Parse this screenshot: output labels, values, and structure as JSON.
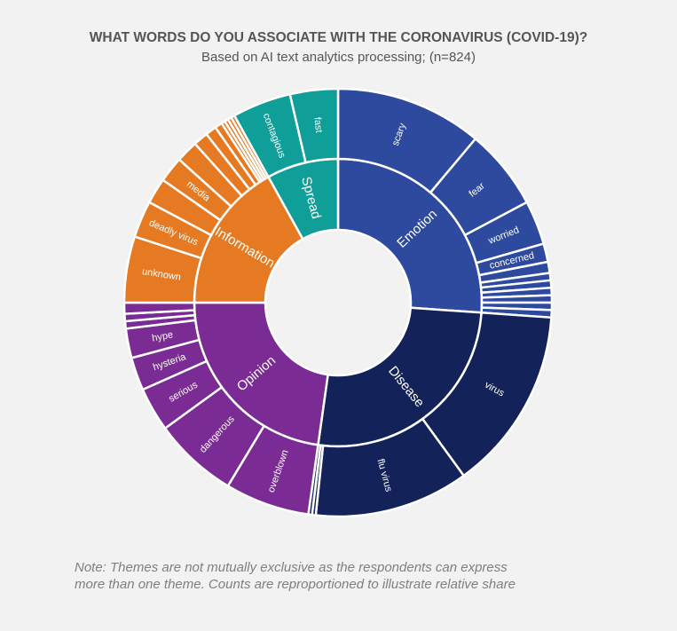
{
  "header": {
    "title": "WHAT WORDS DO YOU ASSOCIATE WITH THE CORONAVIRUS (COVID-19)?",
    "subtitle": "Based on AI text analytics processing; (n=824)"
  },
  "note": {
    "line1": "Note: Themes are not mutually exclusive as the respondents can express",
    "line2": "more than one theme. Counts are reproportioned to illustrate relative share"
  },
  "colors": {
    "Emotion": "#2e4a9e",
    "Disease": "#13235a",
    "Opinion": "#7a2c94",
    "Information": "#e67a22",
    "Spread": "#109e99",
    "separator": "#ffffff",
    "background": "#f2f2f2"
  },
  "chart_data": {
    "type": "sunburst",
    "title": "WHAT WORDS DO YOU ASSOCIATE WITH THE CORONAVIRUS (COVID-19)?",
    "subtitle": "Based on AI text analytics processing; (n=824)",
    "units": "relative share (degrees of circle, estimated)",
    "start_angle_deg": 0,
    "direction": "clockwise",
    "themes": [
      {
        "name": "Emotion",
        "value": 94,
        "children": [
          {
            "name": "scary",
            "value": 40
          },
          {
            "name": "fear",
            "value": 22
          },
          {
            "name": "worried",
            "value": 12
          },
          {
            "name": "concerned",
            "value": 5
          },
          {
            "name": "",
            "value": 3
          },
          {
            "name": "",
            "value": 2
          },
          {
            "name": "",
            "value": 2
          },
          {
            "name": "",
            "value": 2
          },
          {
            "name": "",
            "value": 2
          },
          {
            "name": "",
            "value": 2
          },
          {
            "name": "",
            "value": 2
          }
        ]
      },
      {
        "name": "Disease",
        "value": 94,
        "children": [
          {
            "name": "virus",
            "value": 50
          },
          {
            "name": "flu virus",
            "value": 42
          },
          {
            "name": "",
            "value": 1
          },
          {
            "name": "",
            "value": 1
          }
        ]
      },
      {
        "name": "Opinion",
        "value": 82,
        "children": [
          {
            "name": "overblown",
            "value": 23
          },
          {
            "name": "dangerous",
            "value": 23
          },
          {
            "name": "serious",
            "value": 12
          },
          {
            "name": "hysteria",
            "value": 9
          },
          {
            "name": "hype",
            "value": 8
          },
          {
            "name": "",
            "value": 2
          },
          {
            "name": "",
            "value": 2
          },
          {
            "name": "",
            "value": 3
          }
        ]
      },
      {
        "name": "Information",
        "value": 61,
        "children": [
          {
            "name": "unknown",
            "value": 18
          },
          {
            "name": "deadly virus",
            "value": 10
          },
          {
            "name": "",
            "value": 7
          },
          {
            "name": "media",
            "value": 7
          },
          {
            "name": "",
            "value": 6
          },
          {
            "name": "",
            "value": 4
          },
          {
            "name": "",
            "value": 3
          },
          {
            "name": "",
            "value": 2
          },
          {
            "name": "",
            "value": 1
          },
          {
            "name": "",
            "value": 1
          },
          {
            "name": "",
            "value": 1
          },
          {
            "name": "",
            "value": 1
          }
        ]
      },
      {
        "name": "Spread",
        "value": 29,
        "children": [
          {
            "name": "contagious",
            "value": 16
          },
          {
            "name": "fast",
            "value": 13
          }
        ]
      }
    ]
  }
}
